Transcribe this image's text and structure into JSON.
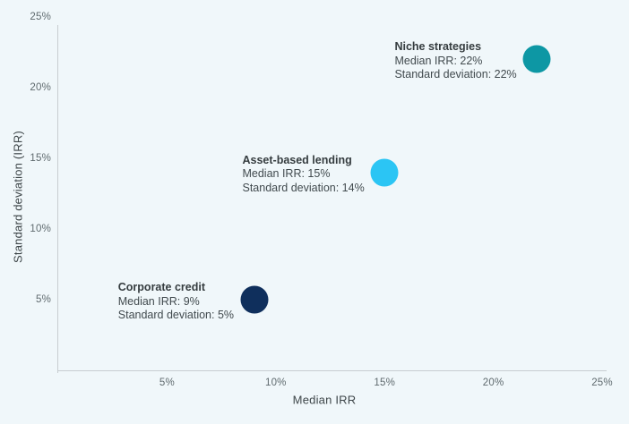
{
  "chart": {
    "background_color": "#F0F7FA",
    "axis_line_color": "#C8CDD1",
    "tick_text_color": "#5F6A6E",
    "axis_title_color": "#3E4649"
  },
  "chart_data": {
    "type": "scatter",
    "title": "",
    "xlabel": "Median IRR",
    "ylabel": "Standard deviation (IRR)",
    "xlim": [
      0,
      25
    ],
    "ylim": [
      0,
      25
    ],
    "grid": false,
    "legend": "none",
    "x_ticks": [
      {
        "value": 5,
        "label": "5%"
      },
      {
        "value": 10,
        "label": "10%"
      },
      {
        "value": 15,
        "label": "15%"
      },
      {
        "value": 20,
        "label": "20%"
      },
      {
        "value": 25,
        "label": "25%"
      }
    ],
    "y_ticks": [
      {
        "value": 5,
        "label": "5%"
      },
      {
        "value": 10,
        "label": "10%"
      },
      {
        "value": 15,
        "label": "15%"
      },
      {
        "value": 20,
        "label": "20%"
      },
      {
        "value": 25,
        "label": "25%"
      }
    ],
    "points": [
      {
        "name": "Corporate credit",
        "x": 9,
        "y": 5,
        "color": "#0F2F5C",
        "annotation": [
          "Corporate credit",
          "Median IRR: 9%",
          "Standard deviation: 5%"
        ]
      },
      {
        "name": "Asset-based lending",
        "x": 15,
        "y": 14,
        "color": "#2BC5F4",
        "annotation": [
          "Asset-based lending",
          "Median IRR: 15%",
          "Standard deviation: 14%"
        ]
      },
      {
        "name": "Niche strategies",
        "x": 22,
        "y": 22,
        "color": "#0D97A4",
        "annotation": [
          "Niche strategies",
          "Median IRR: 22%",
          "Standard deviation: 22%"
        ]
      }
    ]
  }
}
